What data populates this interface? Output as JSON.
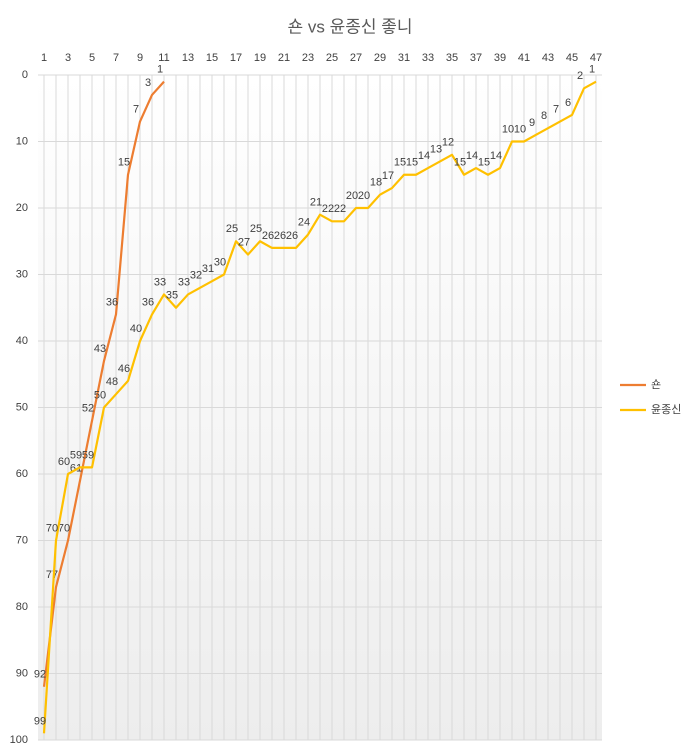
{
  "chart_data": {
    "type": "line",
    "title": "숀 vs 윤종신 좋니",
    "categories": [
      1,
      null,
      3,
      null,
      5,
      null,
      7,
      null,
      9,
      null,
      11,
      null,
      13,
      null,
      15,
      null,
      17,
      null,
      19,
      null,
      21,
      null,
      23,
      null,
      25,
      null,
      27,
      null,
      29,
      null,
      31,
      null,
      33,
      null,
      35,
      null,
      37,
      null,
      39,
      null,
      41,
      null,
      43,
      null,
      45,
      null,
      47
    ],
    "series": [
      {
        "name": "숀",
        "color": "#ed7d31",
        "values": [
          92,
          77,
          70,
          61,
          52,
          43,
          36,
          15,
          7,
          3,
          1,
          null,
          null,
          null,
          null,
          null,
          null,
          null,
          null,
          null,
          null,
          null,
          null,
          null,
          null,
          null,
          null,
          null,
          null,
          null,
          null,
          null,
          null,
          null,
          null,
          null,
          null,
          null,
          null,
          null,
          null,
          null,
          null,
          null,
          null,
          null,
          null
        ]
      },
      {
        "name": "윤종신",
        "color": "#ffc000",
        "values": [
          99,
          70,
          60,
          59,
          59,
          50,
          48,
          46,
          40,
          36,
          33,
          35,
          33,
          32,
          31,
          30,
          25,
          27,
          25,
          26,
          26,
          26,
          24,
          21,
          22,
          22,
          20,
          20,
          18,
          17,
          15,
          15,
          14,
          13,
          12,
          15,
          14,
          15,
          14,
          10,
          10,
          9,
          8,
          7,
          6,
          2,
          1
        ]
      }
    ],
    "ylim": [
      0,
      100
    ],
    "yticks": [
      0,
      10,
      20,
      30,
      40,
      50,
      60,
      70,
      80,
      90,
      100
    ],
    "y_reversed": true,
    "grid": true,
    "legend": "right"
  }
}
